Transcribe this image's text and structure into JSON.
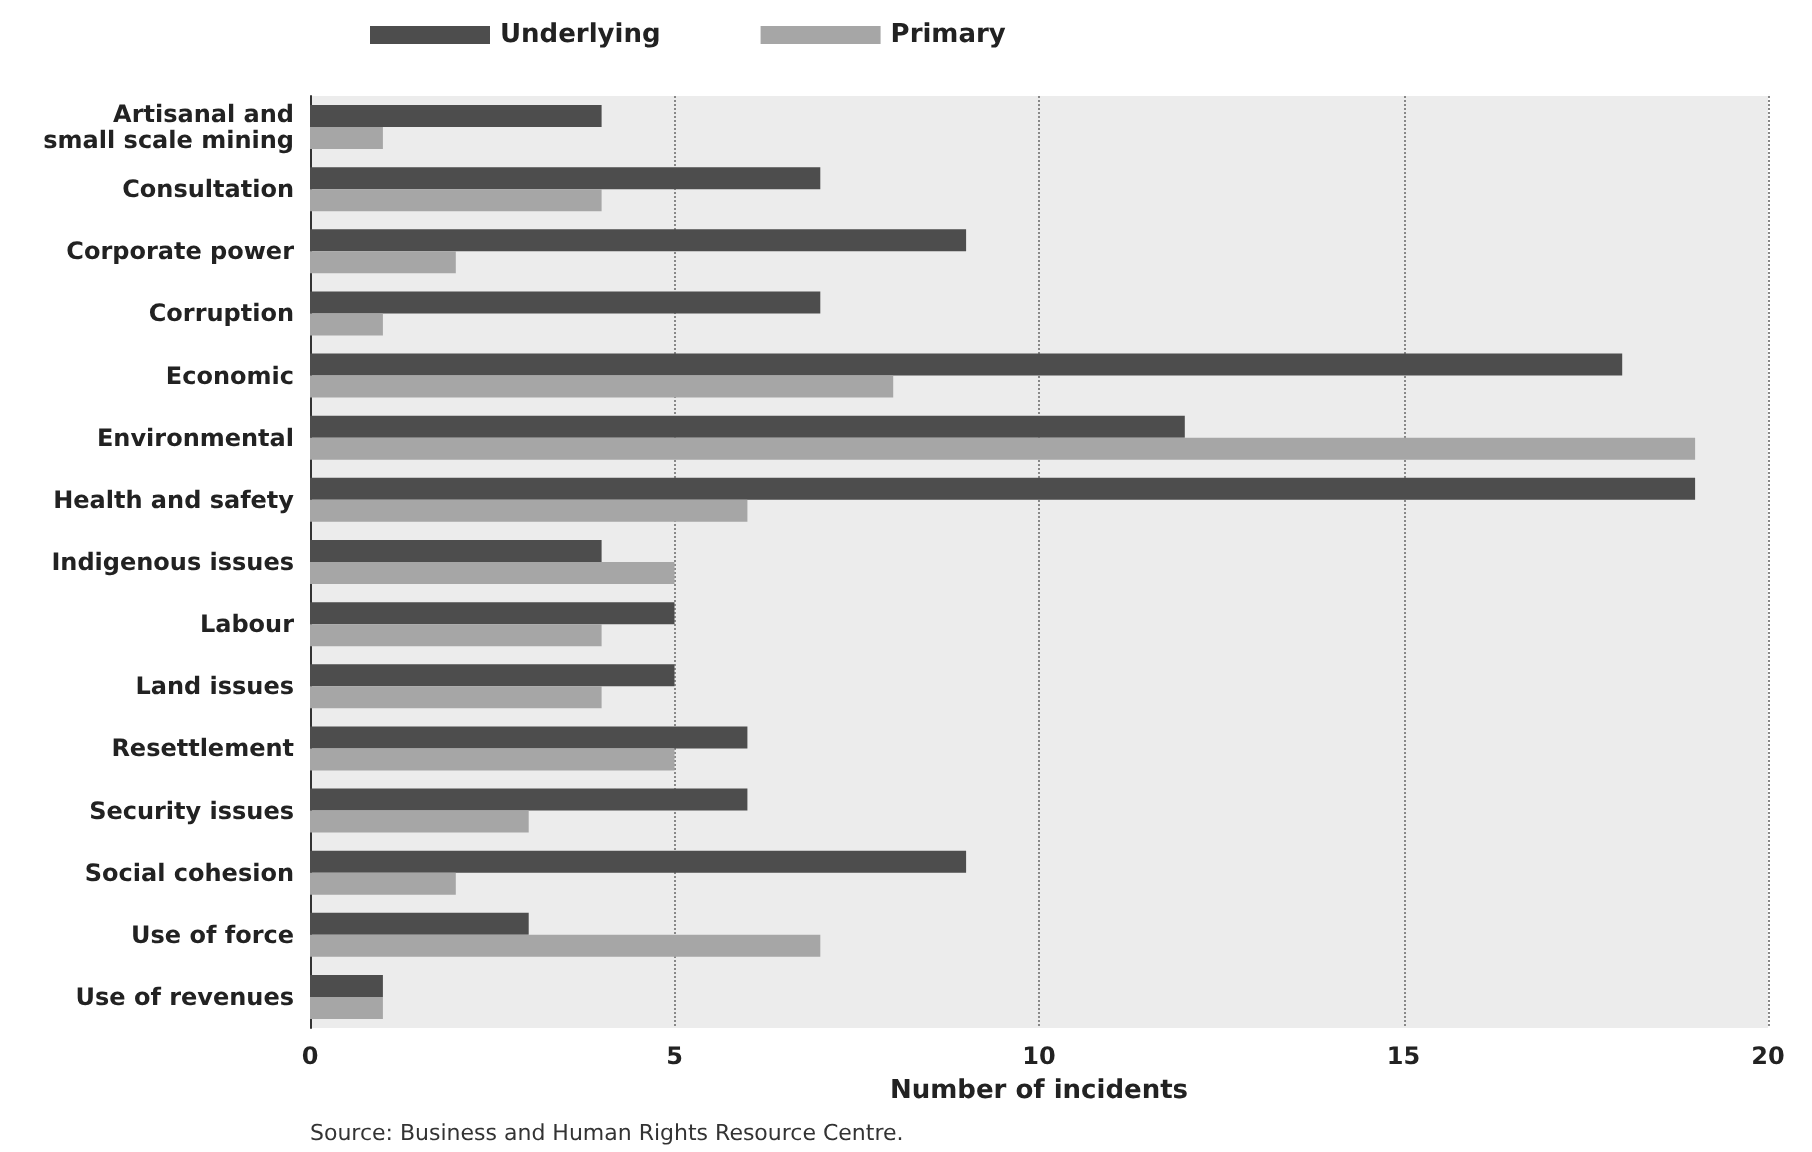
{
  "chart_data": {
    "type": "bar",
    "orientation": "horizontal",
    "xlabel": "Number of incidents",
    "categories": [
      "Artisanal and\nsmall scale mining",
      "Consultation",
      "Corporate power",
      "Corruption",
      "Economic",
      "Environmental",
      "Health and safety",
      "Indigenous issues",
      "Labour",
      "Land issues",
      "Resettlement",
      "Security issues",
      "Social cohesion",
      "Use of force",
      "Use of revenues"
    ],
    "series": [
      {
        "name": "Underlying",
        "color": "#4d4d4d",
        "values": [
          4,
          7,
          9,
          7,
          18,
          12,
          19,
          4,
          5,
          5,
          6,
          6,
          9,
          3,
          1
        ]
      },
      {
        "name": "Primary",
        "color": "#a6a6a6",
        "values": [
          1,
          4,
          2,
          1,
          8,
          19,
          6,
          5,
          4,
          4,
          5,
          3,
          2,
          7,
          1
        ]
      }
    ],
    "xlim": [
      0,
      20
    ],
    "xticks": [
      0,
      5,
      10,
      15,
      20
    ],
    "grid": "x",
    "legend": "top left",
    "annotations": [
      "Source: Business and Human Rights Resource Centre."
    ]
  }
}
